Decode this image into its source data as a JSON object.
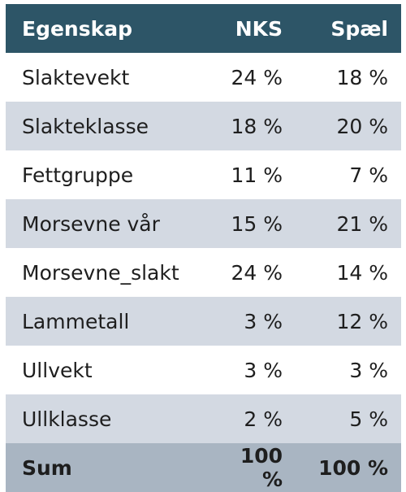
{
  "table": {
    "header": [
      "Egenskap",
      "NKS",
      "Spæl"
    ],
    "rows": [
      [
        "Slaktevekt",
        "24 %",
        "18 %"
      ],
      [
        "Slakteklasse",
        "18 %",
        "20 %"
      ],
      [
        "Fettgruppe",
        "11 %",
        "7 %"
      ],
      [
        "Morsevne vår",
        "15 %",
        "21 %"
      ],
      [
        "Morsevne_slakt",
        "24 %",
        "14 %"
      ],
      [
        "Lammetall",
        "3 %",
        "12 %"
      ],
      [
        "Ullvekt",
        "3 %",
        "3 %"
      ],
      [
        "Ullklasse",
        "2 %",
        "5 %"
      ]
    ],
    "sum": [
      "Sum",
      "100 %",
      "100 %"
    ]
  }
}
